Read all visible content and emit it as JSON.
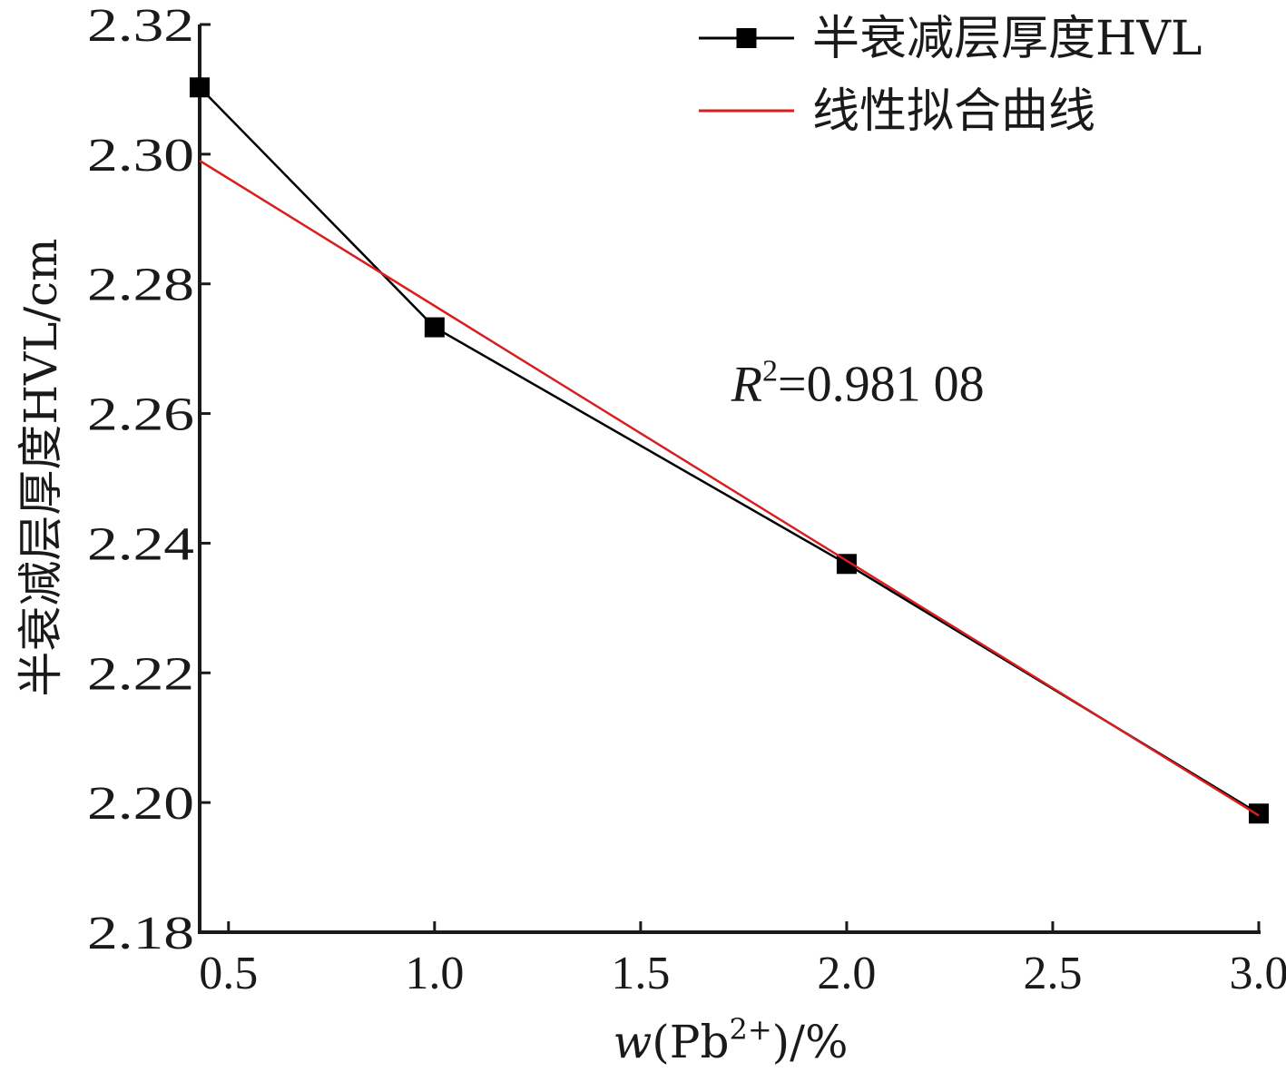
{
  "chart_data": {
    "type": "line",
    "xlabel_parts": {
      "italic": "w",
      "open": "(Pb",
      "sup": "2+",
      "close": ")/%"
    },
    "ylabel": "半衰减层厚度HVL/cm",
    "xlim": [
      0.43,
      3.0
    ],
    "ylim": [
      2.18,
      2.32
    ],
    "x_ticks": [
      0.5,
      1.0,
      1.5,
      2.0,
      2.5,
      3.0
    ],
    "x_tick_labels": [
      "0.5",
      "1.0",
      "1.5",
      "2.0",
      "2.5",
      "3.0"
    ],
    "y_ticks": [
      2.18,
      2.2,
      2.22,
      2.24,
      2.26,
      2.28,
      2.3,
      2.32
    ],
    "y_tick_labels": [
      "2.18",
      "2.20",
      "2.22",
      "2.24",
      "2.26",
      "2.28",
      "2.30",
      "2.32"
    ],
    "grid": false,
    "legend_position": "top-right",
    "series": [
      {
        "name": "半衰减层厚度HVL",
        "color": "#000000",
        "marker": "square",
        "x": [
          0.43,
          1.0,
          2.0,
          3.0
        ],
        "y": [
          2.3103,
          2.2733,
          2.2368,
          2.1983
        ]
      },
      {
        "name": "线性拟合曲线",
        "color": "#d81e1e",
        "marker": "none",
        "x": [
          0.43,
          3.0
        ],
        "y": [
          2.299,
          2.198
        ]
      }
    ],
    "annotation": {
      "italic": "R",
      "sup": "2",
      "text": "=0.981 08",
      "x": 1.72,
      "y": 2.262
    }
  }
}
